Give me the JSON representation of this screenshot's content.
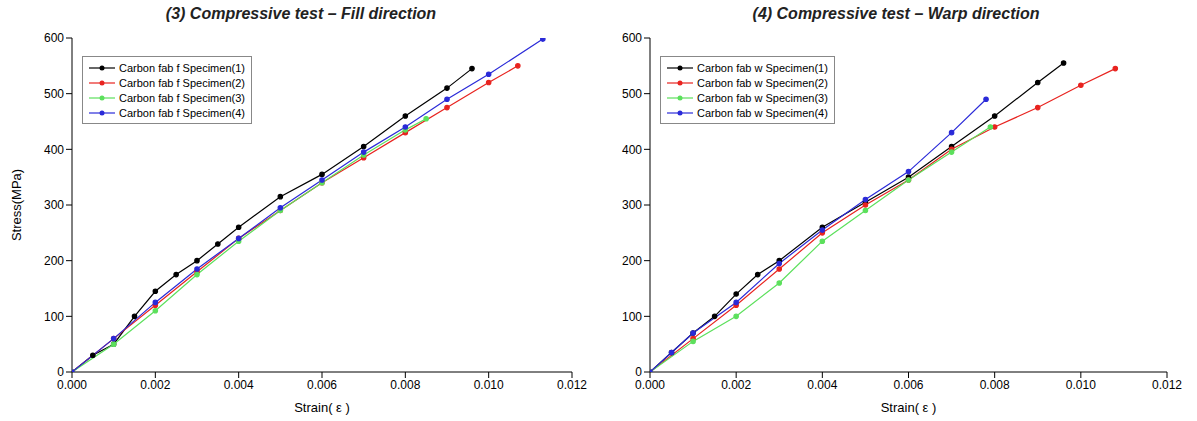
{
  "chart_data": [
    {
      "type": "line",
      "title": "(3) Compressive test – Fill direction",
      "xlabel": "Strain( ε )",
      "ylabel": "Stress(MPa)",
      "xlim": [
        0,
        0.012
      ],
      "xticks": [
        {
          "value": 0,
          "label": "0.000"
        },
        {
          "value": 0.002,
          "label": "0.002"
        },
        {
          "value": 0.004,
          "label": "0.004"
        },
        {
          "value": 0.006,
          "label": "0.006"
        },
        {
          "value": 0.008,
          "label": "0.008"
        },
        {
          "value": 0.01,
          "label": "0.010"
        },
        {
          "value": 0.012,
          "label": "0.012"
        }
      ],
      "ylim": [
        0,
        600
      ],
      "yticks": [
        0,
        100,
        200,
        300,
        400,
        500,
        600
      ],
      "grid": false,
      "legend": "upper left",
      "series": [
        {
          "name": "Carbon fab f Specimen(1)",
          "color": "#000000",
          "marker": "circle",
          "line_style": "solid",
          "x": [
            0,
            0.0005,
            0.001,
            0.0015,
            0.002,
            0.0025,
            0.003,
            0.0035,
            0.004,
            0.005,
            0.006,
            0.007,
            0.008,
            0.009,
            0.0096
          ],
          "values": [
            0,
            30,
            50,
            100,
            145,
            175,
            200,
            230,
            260,
            315,
            355,
            405,
            460,
            510,
            545
          ]
        },
        {
          "name": "Carbon fab f Specimen(2)",
          "color": "#e8231f",
          "marker": "circle",
          "line_style": "solid",
          "x": [
            0,
            0.001,
            0.002,
            0.003,
            0.004,
            0.005,
            0.006,
            0.007,
            0.008,
            0.009,
            0.01,
            0.0107
          ],
          "values": [
            0,
            60,
            120,
            180,
            240,
            290,
            340,
            385,
            430,
            475,
            520,
            550
          ]
        },
        {
          "name": "Carbon fab f Specimen(3)",
          "color": "#5ce05c",
          "marker": "circle",
          "line_style": "solid",
          "x": [
            0,
            0.001,
            0.002,
            0.003,
            0.004,
            0.005,
            0.006,
            0.007,
            0.008,
            0.0085
          ],
          "values": [
            0,
            50,
            110,
            175,
            235,
            290,
            340,
            390,
            435,
            455
          ]
        },
        {
          "name": "Carbon fab f Specimen(4)",
          "color": "#2a2ad8",
          "marker": "circle",
          "line_style": "solid",
          "x": [
            0,
            0.001,
            0.002,
            0.003,
            0.004,
            0.005,
            0.006,
            0.007,
            0.008,
            0.009,
            0.01,
            0.0113
          ],
          "values": [
            0,
            60,
            125,
            185,
            240,
            295,
            345,
            395,
            440,
            490,
            535,
            598
          ]
        }
      ]
    },
    {
      "type": "line",
      "title": "(4) Compressive test – Warp direction",
      "xlabel": "Strain( ε )",
      "xlim": [
        0,
        0.012
      ],
      "xticks": [
        {
          "value": 0,
          "label": "0.000"
        },
        {
          "value": 0.002,
          "label": "0.002"
        },
        {
          "value": 0.004,
          "label": "0.004"
        },
        {
          "value": 0.006,
          "label": "0.006"
        },
        {
          "value": 0.008,
          "label": "0.008"
        },
        {
          "value": 0.01,
          "label": "0.010"
        },
        {
          "value": 0.012,
          "label": "0.012"
        }
      ],
      "ylim": [
        0,
        600
      ],
      "yticks": [
        0,
        100,
        200,
        300,
        400,
        500,
        600
      ],
      "grid": false,
      "legend": "upper left",
      "series": [
        {
          "name": "Carbon fab w Specimen(1)",
          "color": "#000000",
          "marker": "circle",
          "line_style": "solid",
          "x": [
            0,
            0.0005,
            0.001,
            0.0015,
            0.002,
            0.0025,
            0.003,
            0.004,
            0.005,
            0.006,
            0.007,
            0.008,
            0.009,
            0.0096
          ],
          "values": [
            0,
            35,
            70,
            100,
            140,
            175,
            200,
            260,
            305,
            350,
            405,
            460,
            520,
            555
          ]
        },
        {
          "name": "Carbon fab w Specimen(2)",
          "color": "#e8231f",
          "marker": "circle",
          "line_style": "solid",
          "x": [
            0,
            0.001,
            0.002,
            0.003,
            0.004,
            0.005,
            0.006,
            0.007,
            0.008,
            0.009,
            0.01,
            0.0108
          ],
          "values": [
            0,
            60,
            120,
            185,
            250,
            300,
            345,
            400,
            440,
            475,
            515,
            545
          ]
        },
        {
          "name": "Carbon fab w Specimen(3)",
          "color": "#5ce05c",
          "marker": "circle",
          "line_style": "solid",
          "x": [
            0,
            0.001,
            0.002,
            0.003,
            0.004,
            0.005,
            0.006,
            0.007,
            0.0079
          ],
          "values": [
            0,
            55,
            100,
            160,
            235,
            290,
            345,
            395,
            440
          ]
        },
        {
          "name": "Carbon fab w Specimen(4)",
          "color": "#2a2ad8",
          "marker": "circle",
          "line_style": "solid",
          "x": [
            0,
            0.0005,
            0.001,
            0.002,
            0.003,
            0.004,
            0.005,
            0.006,
            0.007,
            0.0078
          ],
          "values": [
            0,
            35,
            70,
            125,
            195,
            255,
            310,
            360,
            430,
            490
          ]
        }
      ]
    }
  ]
}
